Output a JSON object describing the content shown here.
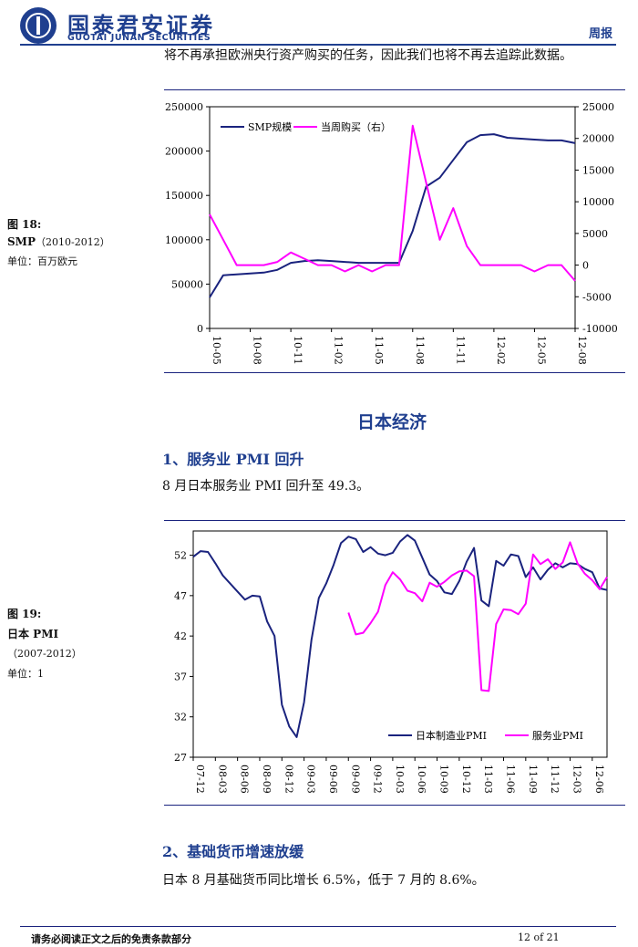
{
  "header": {
    "company_cn": "国泰君安证券",
    "company_en": "GUOTAI JUNAN SECURITIES",
    "doc_type": "周报"
  },
  "intro_text": "将不再承担欧洲央行资产购买的任务，因此我们也将不再去追踪此数据。",
  "figure18": {
    "label": "图 18:",
    "title": "SMP",
    "period": "（2010-2012）",
    "unit": "单位：百万欧元"
  },
  "figure19": {
    "label": "图 19:",
    "title": "日本 PMI",
    "period": "（2007-2012）",
    "unit": "单位：1"
  },
  "section_title": "日本经济",
  "subsection1": {
    "heading": "1、服务业 PMI 回升",
    "text": "8 月日本服务业 PMI 回升至 49.3。"
  },
  "subsection2": {
    "heading": "2、基础货币增速放缓",
    "text": "日本 8 月基础货币同比增长 6.5%，低于 7 月的 8.6%。"
  },
  "footer": {
    "disclaimer": "请务必阅读正文之后的免责条款部分",
    "page": "12 of 21"
  },
  "colors": {
    "navy": "#1a237e",
    "magenta": "#ff00ff",
    "brand": "#1f3f8f"
  },
  "chart_data": [
    {
      "type": "line",
      "x": [
        "10-05",
        "10-06",
        "10-07",
        "10-08",
        "10-09",
        "10-10",
        "10-11",
        "10-12",
        "11-01",
        "11-02",
        "11-03",
        "11-04",
        "11-05",
        "11-06",
        "11-07",
        "11-08",
        "11-09",
        "11-10",
        "11-11",
        "11-12",
        "12-01",
        "12-02",
        "12-03",
        "12-04",
        "12-05",
        "12-06",
        "12-07",
        "12-08"
      ],
      "x_tick_labels": [
        "10-05",
        "10-08",
        "10-11",
        "11-02",
        "11-05",
        "11-08",
        "11-11",
        "12-02",
        "12-05",
        "12-08"
      ],
      "ylim": [
        0,
        250000
      ],
      "y_ticks": [
        0,
        50000,
        100000,
        150000,
        200000,
        250000
      ],
      "y2lim": [
        -10000,
        25000
      ],
      "y2_ticks": [
        -10000,
        -5000,
        0,
        5000,
        10000,
        15000,
        20000,
        25000
      ],
      "legend": "top-left",
      "series": [
        {
          "name": "SMP规模",
          "axis": "left",
          "color": "#1a237e",
          "values": [
            35000,
            60000,
            61000,
            62000,
            63000,
            66000,
            74000,
            76000,
            77000,
            76000,
            75000,
            74000,
            74000,
            74000,
            74000,
            110000,
            160000,
            170000,
            190000,
            210000,
            218000,
            219000,
            215000,
            214000,
            213000,
            212000,
            212000,
            209000
          ]
        },
        {
          "name": "当周购买（右）",
          "axis": "right",
          "color": "#ff00ff",
          "values": [
            8000,
            4000,
            0,
            0,
            0,
            500,
            2000,
            1000,
            0,
            0,
            -1000,
            0,
            -1000,
            0,
            0,
            22000,
            13000,
            4000,
            9000,
            3000,
            0,
            0,
            0,
            0,
            -1000,
            0,
            0,
            -2500
          ]
        }
      ]
    },
    {
      "type": "line",
      "x": [
        "07-12",
        "08-01",
        "08-02",
        "08-03",
        "08-04",
        "08-05",
        "08-06",
        "08-07",
        "08-08",
        "08-09",
        "08-10",
        "08-11",
        "08-12",
        "09-01",
        "09-02",
        "09-03",
        "09-04",
        "09-05",
        "09-06",
        "09-07",
        "09-08",
        "09-09",
        "09-10",
        "09-11",
        "09-12",
        "10-01",
        "10-02",
        "10-03",
        "10-04",
        "10-05",
        "10-06",
        "10-07",
        "10-08",
        "10-09",
        "10-10",
        "10-11",
        "10-12",
        "11-01",
        "11-02",
        "11-03",
        "11-04",
        "11-05",
        "11-06",
        "11-07",
        "11-08",
        "11-09",
        "11-10",
        "11-11",
        "11-12",
        "12-01",
        "12-02",
        "12-03",
        "12-04",
        "12-05",
        "12-06",
        "12-07",
        "12-08"
      ],
      "x_tick_labels": [
        "07-12",
        "08-03",
        "08-06",
        "08-09",
        "08-12",
        "09-03",
        "09-06",
        "09-09",
        "09-12",
        "10-03",
        "10-06",
        "10-09",
        "10-12",
        "11-03",
        "11-06",
        "11-09",
        "11-12",
        "12-03",
        "12-06"
      ],
      "ylim": [
        27,
        55
      ],
      "y_ticks": [
        27,
        32,
        37,
        42,
        47,
        52
      ],
      "legend": "bottom-right",
      "series": [
        {
          "name": "日本制造业PMI",
          "color": "#1a237e",
          "values": [
            51.8,
            52.5,
            52.4,
            51.0,
            49.5,
            48.5,
            47.5,
            46.5,
            47.0,
            46.9,
            43.8,
            42.0,
            33.5,
            30.8,
            29.5,
            33.8,
            41.5,
            46.7,
            48.5,
            50.8,
            53.5,
            54.3,
            54.0,
            52.4,
            53.0,
            52.2,
            52.0,
            52.3,
            53.7,
            54.5,
            53.8,
            51.7,
            49.6,
            48.8,
            47.4,
            47.2,
            48.8,
            51.2,
            52.9,
            46.4,
            45.7,
            51.3,
            50.7,
            52.1,
            51.9,
            49.3,
            50.5,
            49.0,
            50.2,
            51.0,
            50.5,
            51.0,
            50.9,
            50.3,
            49.9,
            47.9,
            47.7
          ]
        },
        {
          "name": "服务业PMI",
          "color": "#ff00ff",
          "values": [
            null,
            null,
            null,
            null,
            null,
            null,
            null,
            null,
            null,
            null,
            null,
            null,
            null,
            null,
            null,
            null,
            null,
            null,
            null,
            null,
            null,
            44.9,
            42.2,
            42.4,
            43.6,
            45.0,
            48.3,
            49.9,
            49.0,
            47.6,
            47.3,
            46.3,
            48.6,
            48.1,
            48.7,
            49.5,
            50.0,
            50.1,
            49.4,
            35.3,
            35.2,
            43.5,
            45.3,
            45.2,
            44.7,
            46.0,
            52.1,
            50.9,
            51.5,
            50.3,
            51.1,
            53.6,
            51.0,
            49.7,
            48.9,
            47.8,
            49.3
          ]
        }
      ]
    }
  ]
}
